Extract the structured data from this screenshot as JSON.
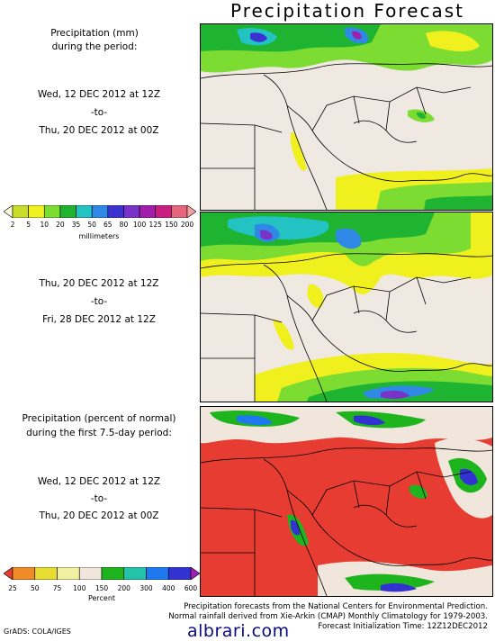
{
  "title": "Precipitation Forecast",
  "panel1": {
    "heading_line1": "Precipitation (mm)",
    "heading_line2": "during the period:",
    "start": "Wed, 12 DEC 2012 at 12Z",
    "to": "-to-",
    "end": "Thu, 20 DEC 2012 at 00Z"
  },
  "colorbar_mm": {
    "ticks": [
      "2",
      "5",
      "10",
      "20",
      "35",
      "50",
      "65",
      "80",
      "100",
      "125",
      "150",
      "200"
    ],
    "colors": [
      "#fbfbe0",
      "#c8dc2a",
      "#f0f01e",
      "#7ddc32",
      "#1eb432",
      "#23c3c3",
      "#2f88e6",
      "#3c32d2",
      "#7832c8",
      "#a01eaa",
      "#c81e82",
      "#e6647e",
      "#f5a0a0"
    ],
    "unit": "millimeters"
  },
  "panel2": {
    "start": "Thu, 20 DEC 2012 at 12Z",
    "to": "-to-",
    "end": "Fri, 28 DEC 2012 at 12Z"
  },
  "panel3": {
    "heading_line1": "Precipitation (percent of normal)",
    "heading_line2": "during the first 7.5-day period:",
    "start": "Wed, 12 DEC 2012 at 12Z",
    "to": "-to-",
    "end": "Thu, 20 DEC 2012 at 00Z"
  },
  "colorbar_pct": {
    "ticks": [
      "25",
      "50",
      "75",
      "100",
      "150",
      "200",
      "300",
      "400",
      "600"
    ],
    "colors": [
      "#e63c32",
      "#f08c28",
      "#e6dc32",
      "#f0f0a0",
      "#f0e6dc",
      "#1eb41e",
      "#23c3aa",
      "#1e78f0",
      "#3232d2",
      "#a01eb4"
    ],
    "unit": "Percent"
  },
  "footer": {
    "line1": "Precipitation forecasts from the National Centers for Environmental Prediction.",
    "line2": "Normal rainfall derived from Xie-Arkin (CMAP) Monthly Climatology for 1979-2003.",
    "line3": "Forecast Initialization Time: 12Z12DEC2012"
  },
  "credit": "GrADS: COLA/IGES",
  "watermark": "albrari.com"
}
